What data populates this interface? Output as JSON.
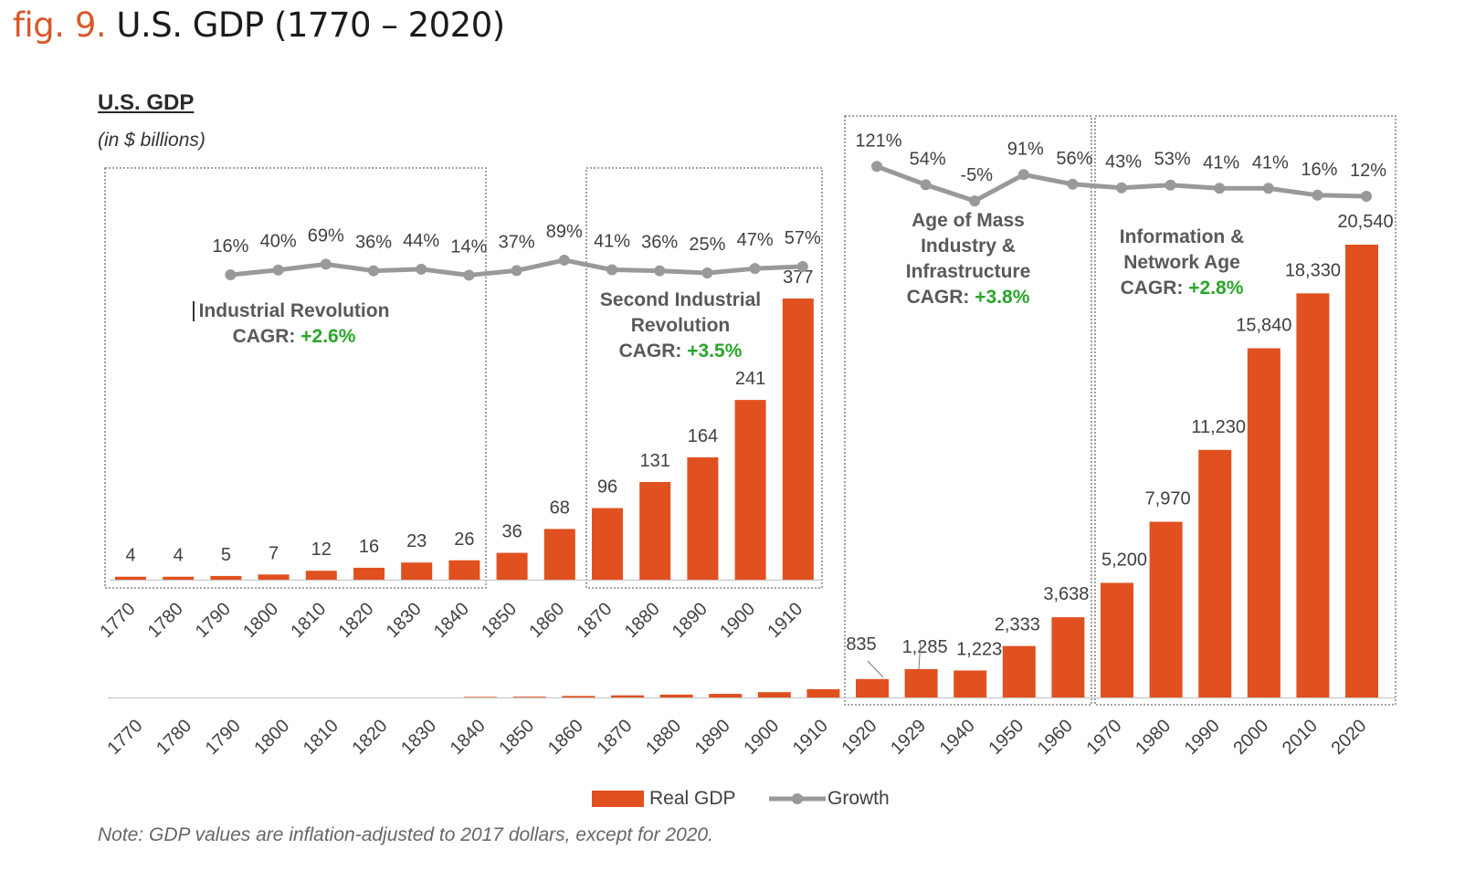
{
  "heading": {
    "fig_label": "fig. 9.",
    "fig_title": "U.S. GDP (1770 – 2020)"
  },
  "colors": {
    "accent": "#d9582b",
    "bar": "#e1501f",
    "growth_line": "#999999",
    "cagr_text": "#2aa52a",
    "era_text": "#595959"
  },
  "chart_data": [
    {
      "type": "bar",
      "title": "U.S. GDP",
      "subtitle": "(in $ billions)",
      "series": [
        {
          "name": "Real GDP",
          "values": [
            4,
            4,
            5,
            7,
            12,
            16,
            23,
            26,
            36,
            68,
            96,
            131,
            164,
            241,
            377
          ]
        }
      ],
      "categories": [
        "1770",
        "1780",
        "1790",
        "1800",
        "1810",
        "1820",
        "1830",
        "1840",
        "1850",
        "1860",
        "1870",
        "1880",
        "1890",
        "1900",
        "1910"
      ],
      "value_labels": [
        "4",
        "4",
        "5",
        "7",
        "12",
        "16",
        "23",
        "26",
        "36",
        "68",
        "96",
        "131",
        "164",
        "241",
        "377"
      ],
      "ylim": [
        0,
        400
      ]
    },
    {
      "type": "bar",
      "series": [
        {
          "name": "Real GDP",
          "values": [
            4,
            4,
            5,
            7,
            12,
            16,
            23,
            26,
            36,
            68,
            96,
            131,
            164,
            241,
            377,
            835,
            1285,
            1223,
            2333,
            3638,
            5200,
            7970,
            11230,
            15840,
            18330,
            20540
          ]
        }
      ],
      "categories": [
        "1770",
        "1780",
        "1790",
        "1800",
        "1810",
        "1820",
        "1830",
        "1840",
        "1850",
        "1860",
        "1870",
        "1880",
        "1890",
        "1900",
        "1910",
        "1920",
        "1929",
        "1940",
        "1950",
        "1960",
        "1970",
        "1980",
        "1990",
        "2000",
        "2010",
        "2020"
      ],
      "value_labels": [
        "835",
        "1,285",
        "1,223",
        "2,333",
        "3,638",
        "5,200",
        "7,970",
        "11,230",
        "15,840",
        "18,330",
        "20,540"
      ],
      "ylim": [
        0,
        22000
      ]
    },
    {
      "type": "line",
      "series": [
        {
          "name": "Growth"
        }
      ],
      "upper": {
        "categories": [
          "1790",
          "1800",
          "1810",
          "1820",
          "1830",
          "1840",
          "1850",
          "1860",
          "1870",
          "1880",
          "1890",
          "1900",
          "1910"
        ],
        "values": [
          16,
          40,
          69,
          36,
          44,
          14,
          37,
          89,
          41,
          36,
          25,
          47,
          57
        ],
        "labels": [
          "16%",
          "40%",
          "69%",
          "36%",
          "44%",
          "14%",
          "37%",
          "89%",
          "41%",
          "36%",
          "25%",
          "47%",
          "57%"
        ]
      },
      "lower": {
        "categories": [
          "1920",
          "1929",
          "1940",
          "1950",
          "1960",
          "1970",
          "1980",
          "1990",
          "2000",
          "2010",
          "2020"
        ],
        "values": [
          121,
          54,
          -5,
          91,
          56,
          43,
          53,
          41,
          41,
          16,
          12
        ],
        "labels": [
          "121%",
          "54%",
          "-5%",
          "91%",
          "56%",
          "43%",
          "53%",
          "41%",
          "41%",
          "16%",
          "12%"
        ]
      }
    }
  ],
  "eras": [
    {
      "name_lines": [
        "Industrial Revolution"
      ],
      "cagr_label": "CAGR:",
      "cagr_value": "+2.6%"
    },
    {
      "name_lines": [
        "Second Industrial",
        "Revolution"
      ],
      "cagr_label": "CAGR:",
      "cagr_value": "+3.5%"
    },
    {
      "name_lines": [
        "Age of Mass",
        "Industry &",
        "Infrastructure"
      ],
      "cagr_label": "CAGR:",
      "cagr_value": "+3.8%"
    },
    {
      "name_lines": [
        "Information &",
        "Network Age"
      ],
      "cagr_label": "CAGR:",
      "cagr_value": "+2.8%"
    }
  ],
  "legend": [
    {
      "label": "Real GDP",
      "kind": "bar"
    },
    {
      "label": "Growth",
      "kind": "line"
    }
  ],
  "note": "Note: GDP values are inflation-adjusted to 2017 dollars, except for 2020."
}
